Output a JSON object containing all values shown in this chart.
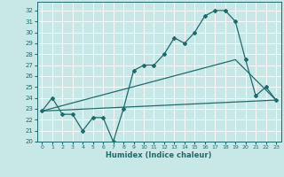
{
  "xlabel": "Humidex (Indice chaleur)",
  "background_color": "#c8e8e8",
  "line_color": "#1e6b6b",
  "grid_color": "#ffffff",
  "xlim": [
    -0.5,
    23.5
  ],
  "ylim": [
    20,
    32.8
  ],
  "yticks": [
    20,
    21,
    22,
    23,
    24,
    25,
    26,
    27,
    28,
    29,
    30,
    31,
    32
  ],
  "xticks": [
    0,
    1,
    2,
    3,
    4,
    5,
    6,
    7,
    8,
    9,
    10,
    11,
    12,
    13,
    14,
    15,
    16,
    17,
    18,
    19,
    20,
    21,
    22,
    23
  ],
  "line1_x": [
    0,
    1,
    2,
    3,
    4,
    5,
    6,
    7,
    8,
    9,
    10,
    11,
    12,
    13,
    14,
    15,
    16,
    17,
    18,
    19,
    20,
    21,
    22,
    23
  ],
  "line1_y": [
    22.8,
    24.0,
    22.5,
    22.5,
    21.0,
    22.2,
    22.2,
    20.0,
    23.0,
    26.5,
    27.0,
    27.0,
    28.0,
    29.5,
    29.0,
    30.0,
    31.5,
    32.0,
    32.0,
    31.0,
    27.5,
    24.2,
    25.0,
    23.8
  ],
  "line2_x": [
    0,
    23
  ],
  "line2_y": [
    22.8,
    23.8
  ],
  "line3_x": [
    0,
    19,
    23
  ],
  "line3_y": [
    22.8,
    27.5,
    23.8
  ]
}
